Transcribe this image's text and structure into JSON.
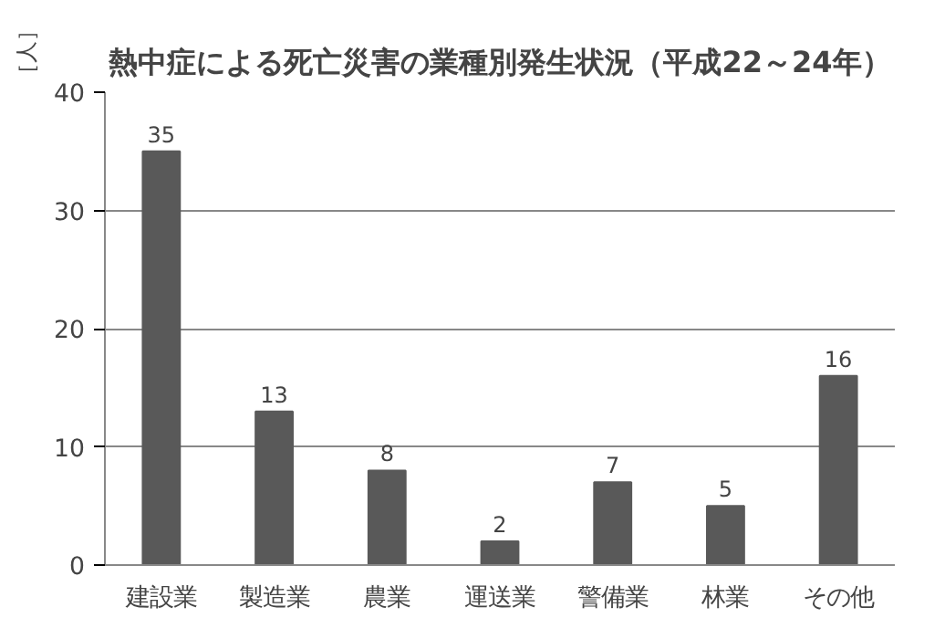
{
  "chart_data": {
    "type": "bar",
    "title": "熱中症による死亡災害の業種別発生状況（平成22～24年）",
    "ylabel": "［人］",
    "categories": [
      "建設業",
      "製造業",
      "農業",
      "運送業",
      "警備業",
      "林業",
      "その他"
    ],
    "values": [
      35,
      13,
      8,
      2,
      7,
      5,
      16
    ],
    "color": "#595959",
    "ylim": [
      0,
      40
    ],
    "yticks": [
      0,
      10,
      20,
      30,
      40
    ],
    "grid": "y",
    "data_labels": true
  }
}
